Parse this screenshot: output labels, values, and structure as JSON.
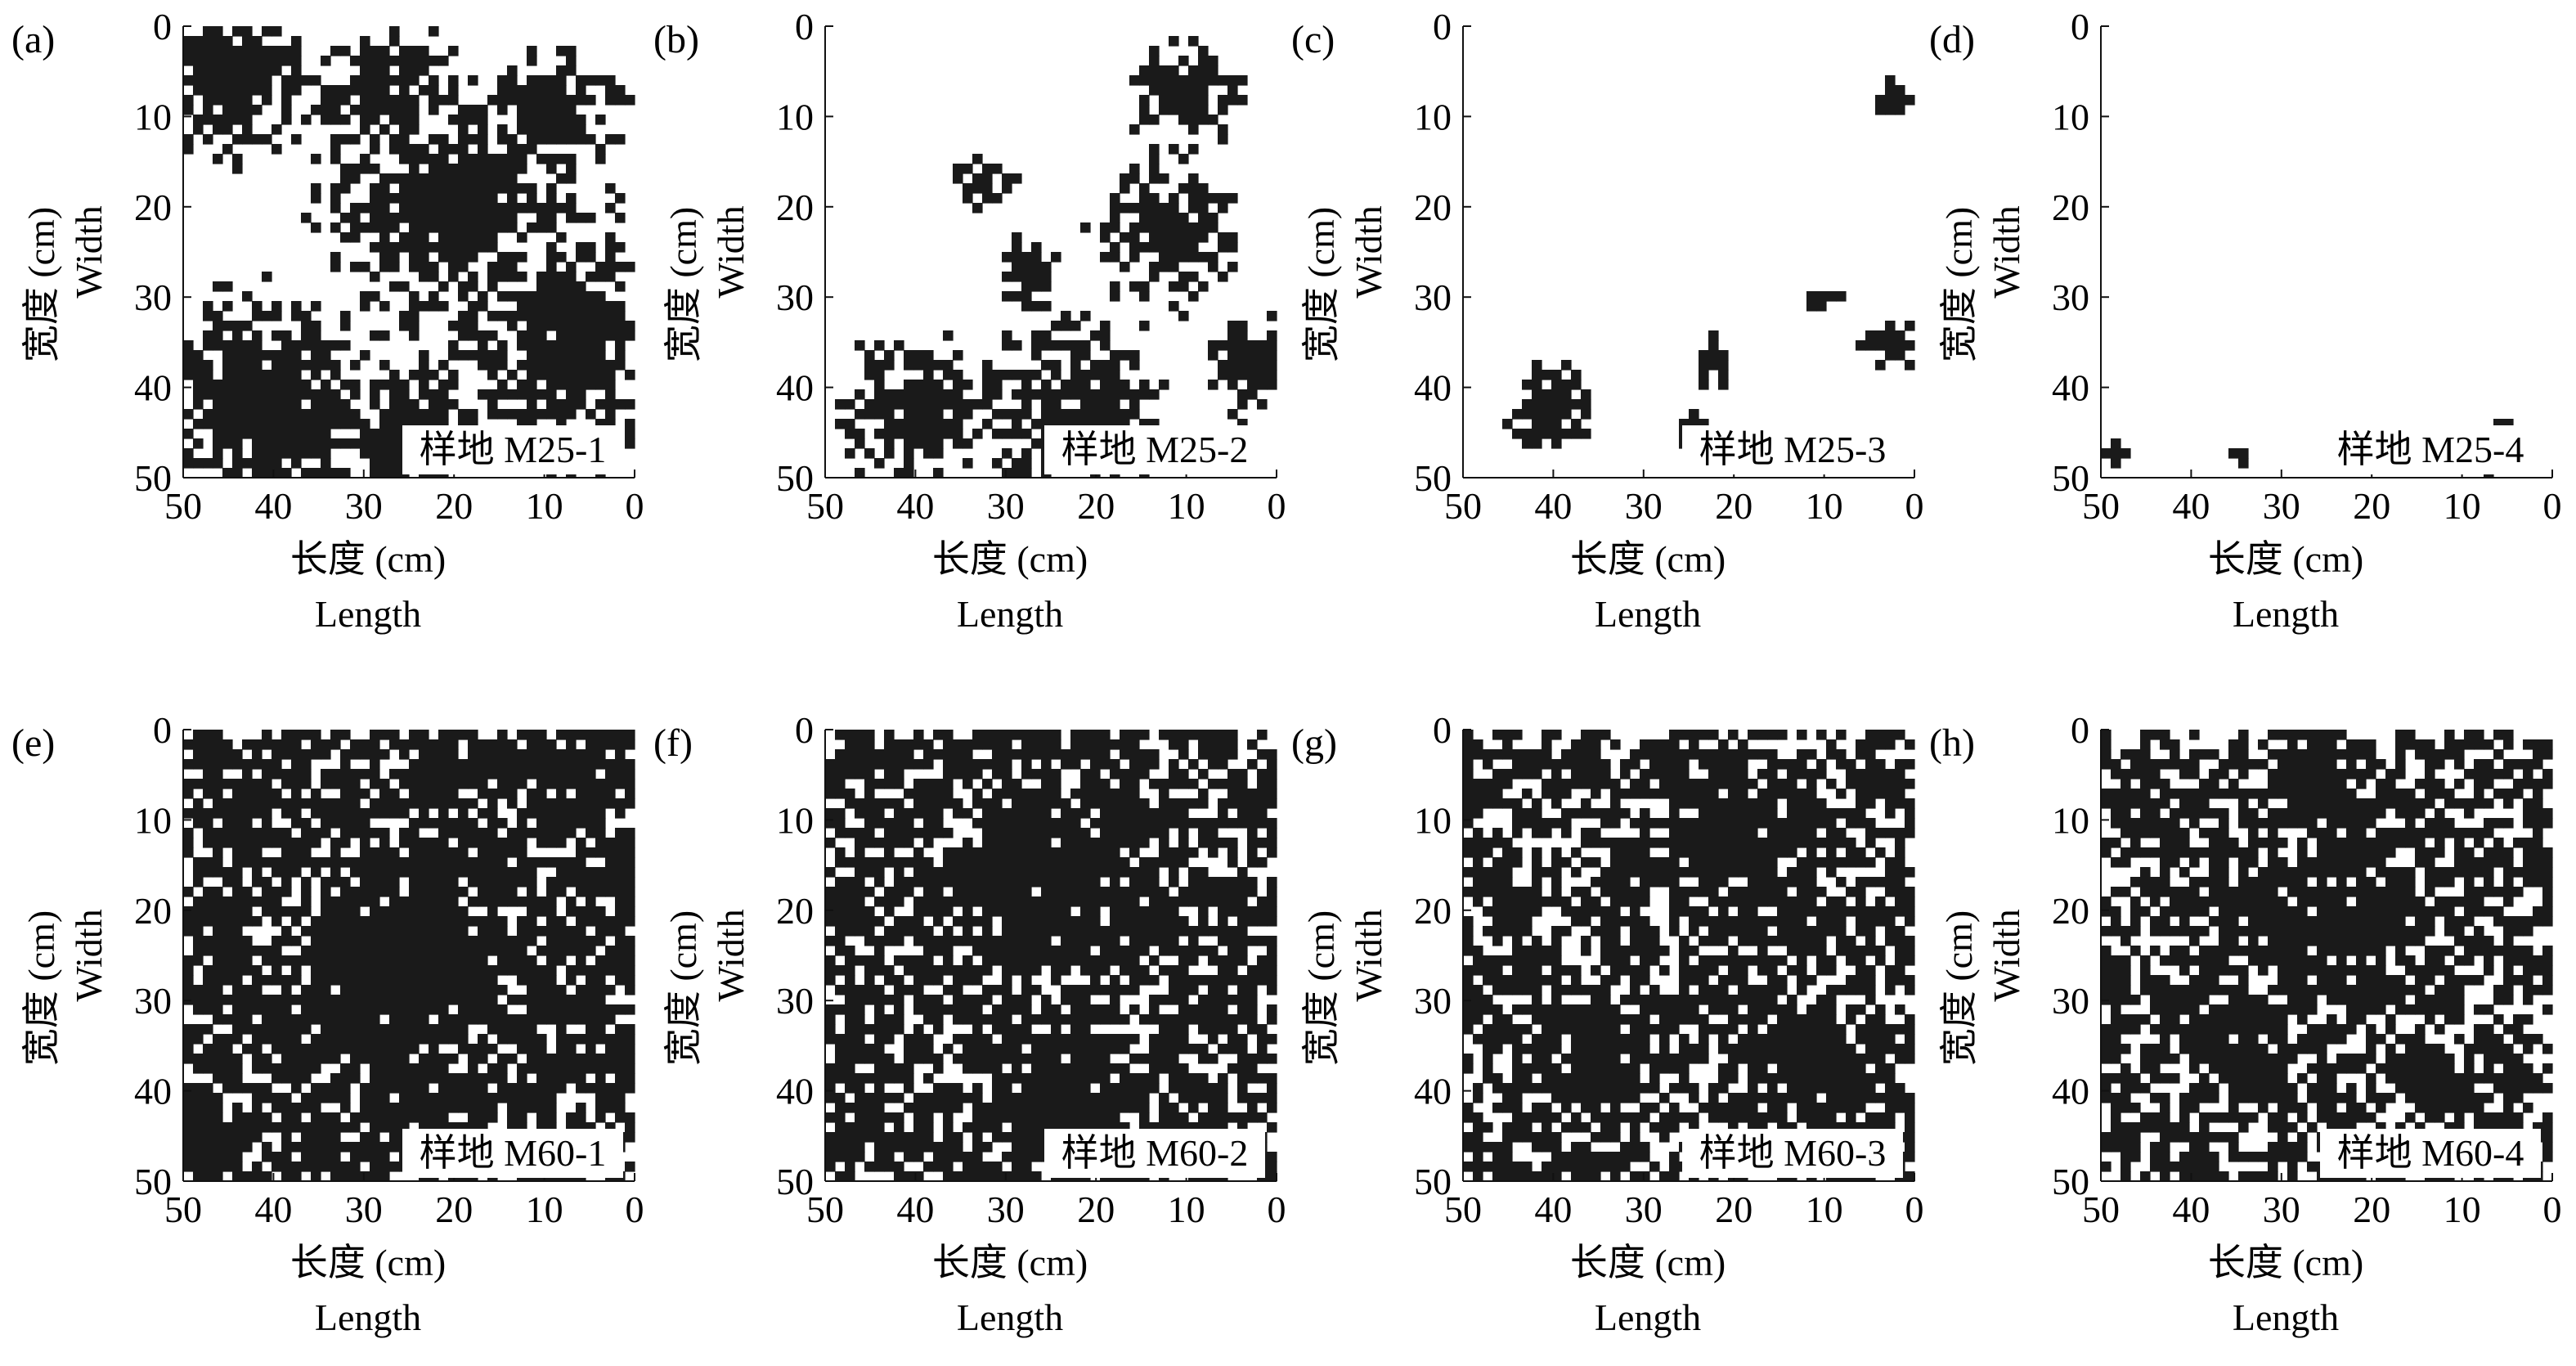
{
  "figure": {
    "panels": [
      {
        "id": "a",
        "panel_label": "(a)",
        "plot_label": "样地 M25-1",
        "cover": "dense-top-left, heavy bottom"
      },
      {
        "id": "b",
        "panel_label": "(b)",
        "plot_label": "样地 M25-2",
        "cover": "moderate"
      },
      {
        "id": "c",
        "panel_label": "(c)",
        "plot_label": "样地 M25-3",
        "cover": "sparse"
      },
      {
        "id": "d",
        "panel_label": "(d)",
        "plot_label": "样地 M25-4",
        "cover": "very sparse"
      },
      {
        "id": "e",
        "panel_label": "(e)",
        "plot_label": "样地 M60-1",
        "cover": "very dense"
      },
      {
        "id": "f",
        "panel_label": "(f)",
        "plot_label": "样地 M60-2",
        "cover": "dense"
      },
      {
        "id": "g",
        "panel_label": "(g)",
        "plot_label": "样地 M60-3",
        "cover": "dense"
      },
      {
        "id": "h",
        "panel_label": "(h)",
        "plot_label": "样地 M60-4",
        "cover": "dense"
      }
    ]
  },
  "chart_data": [
    {
      "type": "heatmap",
      "panel": "(a)",
      "plot": "样地 M25-1",
      "x_label": "长度 (cm)",
      "x_label_en": "Length",
      "y_label": "宽度 (cm)",
      "y_label_en": "Width",
      "x_ticks": [
        50,
        40,
        30,
        20,
        10,
        0
      ],
      "y_ticks": [
        0,
        10,
        20,
        30,
        40,
        50
      ],
      "xlim": [
        50,
        0
      ],
      "ylim": [
        0,
        50
      ],
      "coverage": 0.55
    },
    {
      "type": "heatmap",
      "panel": "(b)",
      "plot": "样地 M25-2",
      "x_label": "长度 (cm)",
      "x_label_en": "Length",
      "y_label": "宽度 (cm)",
      "y_label_en": "Width",
      "x_ticks": [
        50,
        40,
        30,
        20,
        10,
        0
      ],
      "y_ticks": [
        0,
        10,
        20,
        30,
        40,
        50
      ],
      "xlim": [
        50,
        0
      ],
      "ylim": [
        0,
        50
      ],
      "coverage": 0.3
    },
    {
      "type": "heatmap",
      "panel": "(c)",
      "plot": "样地 M25-3",
      "x_label": "长度 (cm)",
      "x_label_en": "Length",
      "y_label": "宽度 (cm)",
      "y_label_en": "Width",
      "x_ticks": [
        50,
        40,
        30,
        20,
        10,
        0
      ],
      "y_ticks": [
        0,
        10,
        20,
        30,
        40,
        50
      ],
      "xlim": [
        50,
        0
      ],
      "ylim": [
        0,
        50
      ],
      "coverage": 0.08
    },
    {
      "type": "heatmap",
      "panel": "(d)",
      "plot": "样地 M25-4",
      "x_label": "长度 (cm)",
      "x_label_en": "Length",
      "y_label": "宽度 (cm)",
      "y_label_en": "Width",
      "x_ticks": [
        50,
        40,
        30,
        20,
        10,
        0
      ],
      "y_ticks": [
        0,
        10,
        20,
        30,
        40,
        50
      ],
      "xlim": [
        50,
        0
      ],
      "ylim": [
        0,
        50
      ],
      "coverage": 0.02
    },
    {
      "type": "heatmap",
      "panel": "(e)",
      "plot": "样地 M60-1",
      "x_label": "长度 (cm)",
      "x_label_en": "Length",
      "y_label": "宽度 (cm)",
      "y_label_en": "Width",
      "x_ticks": [
        50,
        40,
        30,
        20,
        10,
        0
      ],
      "y_ticks": [
        0,
        10,
        20,
        30,
        40,
        50
      ],
      "xlim": [
        50,
        0
      ],
      "ylim": [
        0,
        50
      ],
      "coverage": 0.85
    },
    {
      "type": "heatmap",
      "panel": "(f)",
      "plot": "样地 M60-2",
      "x_label": "长度 (cm)",
      "x_label_en": "Length",
      "y_label": "宽度 (cm)",
      "y_label_en": "Width",
      "x_ticks": [
        50,
        40,
        30,
        20,
        10,
        0
      ],
      "y_ticks": [
        0,
        10,
        20,
        30,
        40,
        50
      ],
      "xlim": [
        50,
        0
      ],
      "ylim": [
        0,
        50
      ],
      "coverage": 0.8
    },
    {
      "type": "heatmap",
      "panel": "(g)",
      "plot": "样地 M60-3",
      "x_label": "长度 (cm)",
      "x_label_en": "Length",
      "y_label": "宽度 (cm)",
      "y_label_en": "Width",
      "x_ticks": [
        50,
        40,
        30,
        20,
        10,
        0
      ],
      "y_ticks": [
        0,
        10,
        20,
        30,
        40,
        50
      ],
      "xlim": [
        50,
        0
      ],
      "ylim": [
        0,
        50
      ],
      "coverage": 0.72
    },
    {
      "type": "heatmap",
      "panel": "(h)",
      "plot": "样地 M60-4",
      "x_label": "长度 (cm)",
      "x_label_en": "Length",
      "y_label": "宽度 (cm)",
      "y_label_en": "Width",
      "x_ticks": [
        50,
        40,
        30,
        20,
        10,
        0
      ],
      "y_ticks": [
        0,
        10,
        20,
        30,
        40,
        50
      ],
      "xlim": [
        50,
        0
      ],
      "ylim": [
        0,
        50
      ],
      "coverage": 0.68
    }
  ]
}
